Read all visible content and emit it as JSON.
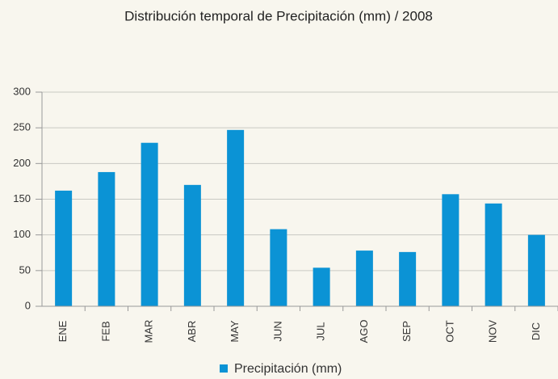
{
  "chart_data": {
    "type": "bar",
    "title": "Distribución temporal de Precipitación (mm) / 2008",
    "categories": [
      "ENE",
      "FEB",
      "MAR",
      "ABR",
      "MAY",
      "JUN",
      "JUL",
      "AGO",
      "SEP",
      "OCT",
      "NOV",
      "DIC"
    ],
    "series": [
      {
        "name": "Precipitación (mm)",
        "color": "#0b93d5",
        "values": [
          162,
          188,
          229,
          170,
          247,
          108,
          54,
          78,
          76,
          157,
          144,
          100
        ]
      }
    ],
    "ylim": [
      0,
      300
    ],
    "yticks": [
      0,
      50,
      100,
      150,
      200,
      250,
      300
    ],
    "grid": true,
    "legend": "bottom"
  }
}
